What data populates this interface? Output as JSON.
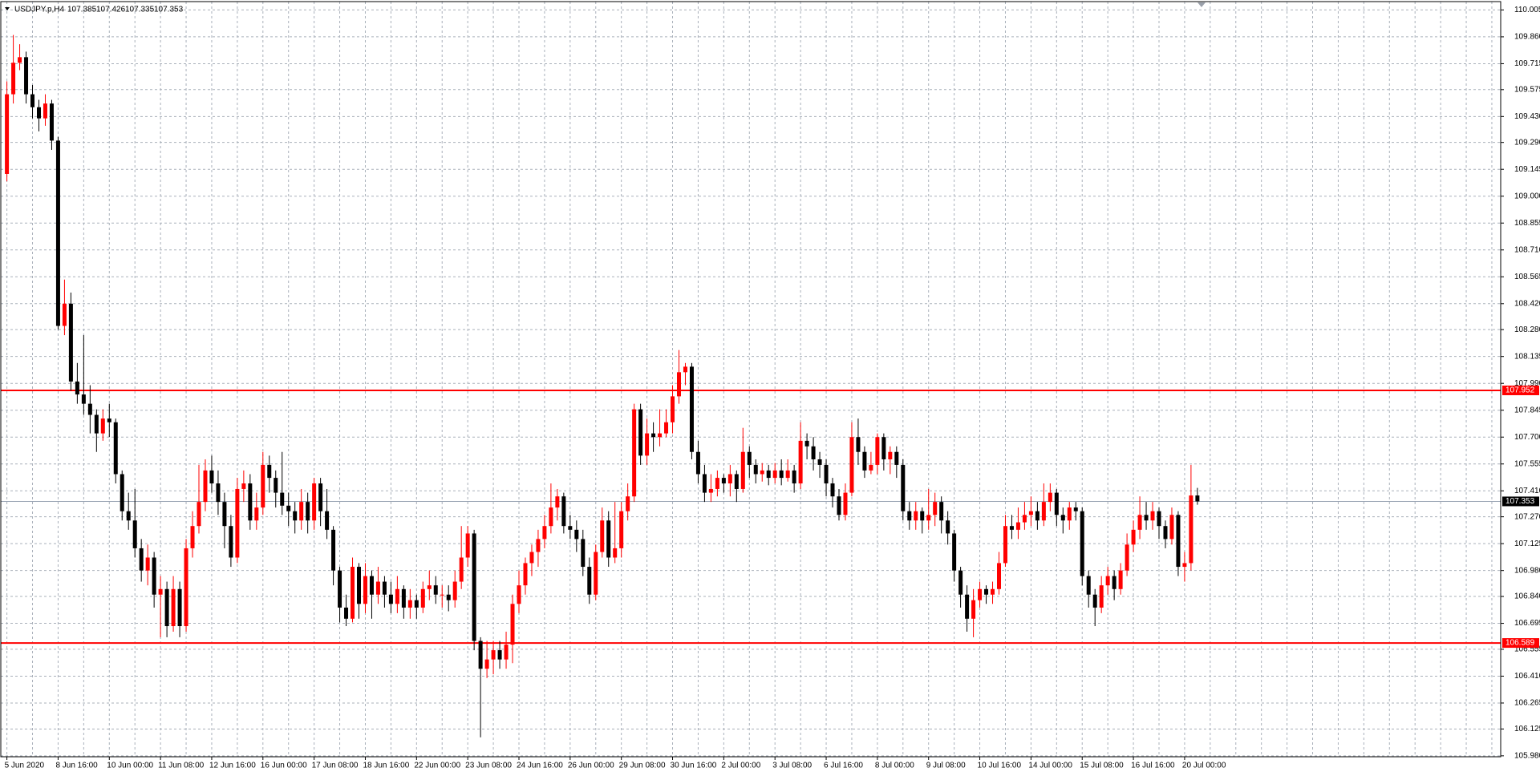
{
  "chart_data": {
    "type": "candlestick",
    "symbol": "USDJPY.p,H4",
    "bull_color": "#ff0000",
    "bear_color": "#000000",
    "grid": true,
    "ylim": [
      105.975,
      110.05
    ],
    "yticks": [
      {
        "value": 110.005,
        "label": "110.005"
      },
      {
        "value": 109.86,
        "label": "109.860"
      },
      {
        "value": 109.715,
        "label": "109.715"
      },
      {
        "value": 109.575,
        "label": "109.575"
      },
      {
        "value": 109.43,
        "label": "109.430"
      },
      {
        "value": 109.29,
        "label": "109.290"
      },
      {
        "value": 109.145,
        "label": "109.145"
      },
      {
        "value": 109,
        "label": "109.000"
      },
      {
        "value": 108.855,
        "label": "108.855"
      },
      {
        "value": 108.71,
        "label": "108.710"
      },
      {
        "value": 108.565,
        "label": "108.565"
      },
      {
        "value": 108.42,
        "label": "108.420"
      },
      {
        "value": 108.28,
        "label": "108.280"
      },
      {
        "value": 108.135,
        "label": "108.135"
      },
      {
        "value": 107.99,
        "label": "107.990"
      },
      {
        "value": 107.845,
        "label": "107.845"
      },
      {
        "value": 107.7,
        "label": "107.700"
      },
      {
        "value": 107.555,
        "label": "107.555"
      },
      {
        "value": 107.41,
        "label": "107.410"
      },
      {
        "value": 107.27,
        "label": "107.270"
      },
      {
        "value": 107.125,
        "label": "107.125"
      },
      {
        "value": 106.98,
        "label": "106.980"
      },
      {
        "value": 106.84,
        "label": "106.840"
      },
      {
        "value": 106.695,
        "label": "106.695"
      },
      {
        "value": 106.555,
        "label": "106.555"
      },
      {
        "value": 106.41,
        "label": "106.410"
      },
      {
        "value": 106.265,
        "label": "106.265"
      },
      {
        "value": 106.125,
        "label": "106.125"
      },
      {
        "value": 105.98,
        "label": "105.980"
      }
    ],
    "levels": [
      107.952,
      106.589
    ],
    "level_color": "#ff0000",
    "current_price": 107.353,
    "categories": [
      "5 Jun 2020",
      null,
      null,
      null,
      null,
      null,
      null,
      null,
      "8 Jun 16:00",
      null,
      null,
      null,
      null,
      null,
      null,
      null,
      "10 Jun 00:00",
      null,
      null,
      null,
      null,
      null,
      null,
      null,
      "11 Jun 08:00",
      null,
      null,
      null,
      null,
      null,
      null,
      null,
      "12 Jun 16:00",
      null,
      null,
      null,
      null,
      null,
      null,
      null,
      "16 Jun 00:00",
      null,
      null,
      null,
      null,
      null,
      null,
      null,
      "17 Jun 08:00",
      null,
      null,
      null,
      null,
      null,
      null,
      null,
      "18 Jun 16:00",
      null,
      null,
      null,
      null,
      null,
      null,
      null,
      "22 Jun 00:00",
      null,
      null,
      null,
      null,
      null,
      null,
      null,
      "23 Jun 08:00",
      null,
      null,
      null,
      null,
      null,
      null,
      null,
      "24 Jun 16:00",
      null,
      null,
      null,
      null,
      null,
      null,
      null,
      "26 Jun 00:00",
      null,
      null,
      null,
      null,
      null,
      null,
      null,
      "29 Jun 08:00",
      null,
      null,
      null,
      null,
      null,
      null,
      null,
      "30 Jun 16:00",
      null,
      null,
      null,
      null,
      null,
      null,
      null,
      "2 Jul 00:00",
      null,
      null,
      null,
      null,
      null,
      null,
      null,
      "3 Jul 08:00",
      null,
      null,
      null,
      null,
      null,
      null,
      null,
      "6 Jul 16:00",
      null,
      null,
      null,
      null,
      null,
      null,
      null,
      "8 Jul 00:00",
      null,
      null,
      null,
      null,
      null,
      null,
      null,
      "9 Jul 08:00",
      null,
      null,
      null,
      null,
      null,
      null,
      null,
      "10 Jul 16:00",
      null,
      null,
      null,
      null,
      null,
      null,
      null,
      "14 Jul 00:00",
      null,
      null,
      null,
      null,
      null,
      null,
      null,
      "15 Jul 08:00",
      null,
      null,
      null,
      null,
      null,
      null,
      null,
      "16 Jul 16:00",
      null,
      null,
      null,
      null,
      null,
      null,
      null,
      "20 Jul 00:00",
      null,
      null
    ],
    "open": [
      109.12,
      109.55,
      109.72,
      109.75,
      109.55,
      109.48,
      109.42,
      109.5,
      109.3,
      108.3,
      108.42,
      108.0,
      107.93,
      107.88,
      107.82,
      107.72,
      107.8,
      107.78,
      107.5,
      107.3,
      107.25,
      107.1,
      106.98,
      107.05,
      106.85,
      106.88,
      106.68,
      106.88,
      106.68,
      107.1,
      107.22,
      107.35,
      107.52,
      107.45,
      107.35,
      107.22,
      107.05,
      107.42,
      107.45,
      107.25,
      107.32,
      107.55,
      107.48,
      107.4,
      107.33,
      107.3,
      107.25,
      107.35,
      107.25,
      107.45,
      107.3,
      107.2,
      106.98,
      106.78,
      106.72,
      107.0,
      106.8,
      106.95,
      106.85,
      106.92,
      106.85,
      106.8,
      106.88,
      106.78,
      106.82,
      106.78,
      106.88,
      106.9,
      106.85,
      106.85,
      106.82,
      106.92,
      107.05,
      107.18,
      106.6,
      106.45,
      106.5,
      106.55,
      106.5,
      106.58,
      106.8,
      106.9,
      107.02,
      107.08,
      107.15,
      107.22,
      107.32,
      107.38,
      107.22,
      107.2,
      107.15,
      107.0,
      106.85,
      107.08,
      107.25,
      107.05,
      107.1,
      107.3,
      107.38,
      107.85,
      107.6,
      107.72,
      107.7,
      107.72,
      107.78,
      107.92,
      108.05,
      108.08,
      107.62,
      107.5,
      107.4,
      107.42,
      107.48,
      107.45,
      107.5,
      107.42,
      107.62,
      107.55,
      107.5,
      107.52,
      107.48,
      107.52,
      107.48,
      107.52,
      107.45,
      107.68,
      107.65,
      107.58,
      107.55,
      107.45,
      107.38,
      107.28,
      107.4,
      107.7,
      107.62,
      107.52,
      107.55,
      107.7,
      107.58,
      107.62,
      107.55,
      107.3,
      107.25,
      107.3,
      107.25,
      107.28,
      107.35,
      107.25,
      107.18,
      106.98,
      106.85,
      106.72,
      106.82,
      106.88,
      106.85,
      106.88,
      107.02,
      107.22,
      107.2,
      107.24,
      107.28,
      107.3,
      107.25,
      107.35,
      107.4,
      107.28,
      107.25,
      107.32,
      107.3,
      106.95,
      106.85,
      106.78,
      106.9,
      106.95,
      106.88,
      106.98,
      107.12,
      107.2,
      107.28,
      107.25,
      107.3,
      107.22,
      107.15,
      107.28,
      107.0,
      107.02,
      107.385
    ],
    "high": [
      109.62,
      109.87,
      109.82,
      109.78,
      109.6,
      109.52,
      109.55,
      109.52,
      109.32,
      108.55,
      108.48,
      108.1,
      108.25,
      107.98,
      107.85,
      107.85,
      107.88,
      107.8,
      107.52,
      107.4,
      107.42,
      107.15,
      107.12,
      107.08,
      106.95,
      106.92,
      106.95,
      106.92,
      107.15,
      107.3,
      107.55,
      107.58,
      107.6,
      107.52,
      107.4,
      107.28,
      107.48,
      107.52,
      107.5,
      107.4,
      107.62,
      107.6,
      107.52,
      107.62,
      107.4,
      107.35,
      107.42,
      107.4,
      107.48,
      107.48,
      107.42,
      107.22,
      107.0,
      106.85,
      107.05,
      107.02,
      107.02,
      106.98,
      107.0,
      106.95,
      106.92,
      106.95,
      106.9,
      106.88,
      106.85,
      106.92,
      106.98,
      106.95,
      106.9,
      106.9,
      106.98,
      107.22,
      107.22,
      107.2,
      106.62,
      106.6,
      106.6,
      106.6,
      106.65,
      106.85,
      106.98,
      107.05,
      107.12,
      107.2,
      107.28,
      107.45,
      107.42,
      107.4,
      107.28,
      107.25,
      107.2,
      107.05,
      107.12,
      107.32,
      107.3,
      107.35,
      107.35,
      107.45,
      107.88,
      107.88,
      107.8,
      107.78,
      107.85,
      107.85,
      107.98,
      108.17,
      108.1,
      108.1,
      107.68,
      107.55,
      107.5,
      107.52,
      107.5,
      107.55,
      107.52,
      107.75,
      107.65,
      107.58,
      107.56,
      107.55,
      107.56,
      107.58,
      107.58,
      107.55,
      107.78,
      107.72,
      107.7,
      107.62,
      107.58,
      107.48,
      107.42,
      107.45,
      107.78,
      107.8,
      107.65,
      107.62,
      107.72,
      107.72,
      107.65,
      107.65,
      107.58,
      107.35,
      107.35,
      107.32,
      107.42,
      107.4,
      107.38,
      107.3,
      107.2,
      107.0,
      106.9,
      106.88,
      106.92,
      106.9,
      106.92,
      107.08,
      107.28,
      107.28,
      107.32,
      107.35,
      107.38,
      107.35,
      107.45,
      107.45,
      107.42,
      107.32,
      107.35,
      107.35,
      107.32,
      106.98,
      106.88,
      106.95,
      107.0,
      106.98,
      107.02,
      107.18,
      107.25,
      107.38,
      107.35,
      107.35,
      107.32,
      107.25,
      107.32,
      107.3,
      107.08,
      107.55,
      107.426
    ],
    "low": [
      109.08,
      109.5,
      109.68,
      109.5,
      109.42,
      109.35,
      109.38,
      109.25,
      108.28,
      108.25,
      107.95,
      107.88,
      107.82,
      107.72,
      107.62,
      107.68,
      107.7,
      107.45,
      107.25,
      107.2,
      107.05,
      106.92,
      106.9,
      106.78,
      106.62,
      106.62,
      106.65,
      106.62,
      106.65,
      107.05,
      107.18,
      107.3,
      107.4,
      107.28,
      107.1,
      107.0,
      107.02,
      107.35,
      107.2,
      107.2,
      107.28,
      107.4,
      107.32,
      107.28,
      107.22,
      107.18,
      107.2,
      107.18,
      107.2,
      107.22,
      107.15,
      106.9,
      106.7,
      106.68,
      106.7,
      106.72,
      106.75,
      106.72,
      106.8,
      106.78,
      106.75,
      106.75,
      106.72,
      106.72,
      106.72,
      106.75,
      106.82,
      106.8,
      106.78,
      106.76,
      106.78,
      106.88,
      107.0,
      106.55,
      106.08,
      106.4,
      106.42,
      106.45,
      106.45,
      106.48,
      106.75,
      106.85,
      106.95,
      107.0,
      107.1,
      107.18,
      107.25,
      107.18,
      107.15,
      107.08,
      106.95,
      106.8,
      106.82,
      107.05,
      107.0,
      107.02,
      107.05,
      107.25,
      107.35,
      107.55,
      107.55,
      107.62,
      107.65,
      107.7,
      107.72,
      107.88,
      107.98,
      107.58,
      107.45,
      107.35,
      107.35,
      107.38,
      107.4,
      107.38,
      107.35,
      107.4,
      107.48,
      107.45,
      107.46,
      107.44,
      107.45,
      107.44,
      107.46,
      107.4,
      107.42,
      107.58,
      107.52,
      107.48,
      107.38,
      107.32,
      107.25,
      107.25,
      107.38,
      107.55,
      107.48,
      107.5,
      107.5,
      107.52,
      107.5,
      107.48,
      107.25,
      107.2,
      107.2,
      107.18,
      107.2,
      107.22,
      107.18,
      107.12,
      106.92,
      106.78,
      106.65,
      106.62,
      106.78,
      106.8,
      106.8,
      106.85,
      107.0,
      107.15,
      107.15,
      107.2,
      107.22,
      107.2,
      107.22,
      107.3,
      107.22,
      107.18,
      107.2,
      107.25,
      106.9,
      106.78,
      106.68,
      106.75,
      106.85,
      106.82,
      106.85,
      106.95,
      107.08,
      107.15,
      107.2,
      107.2,
      107.15,
      107.1,
      107.12,
      106.95,
      106.92,
      106.98,
      107.335
    ],
    "close": [
      109.55,
      109.72,
      109.75,
      109.55,
      109.48,
      109.42,
      109.5,
      109.3,
      108.3,
      108.42,
      108.0,
      107.93,
      107.88,
      107.82,
      107.72,
      107.8,
      107.78,
      107.5,
      107.3,
      107.25,
      107.1,
      106.98,
      107.05,
      106.85,
      106.88,
      106.68,
      106.88,
      106.68,
      107.1,
      107.22,
      107.35,
      107.52,
      107.45,
      107.35,
      107.22,
      107.05,
      107.42,
      107.45,
      107.25,
      107.32,
      107.55,
      107.48,
      107.4,
      107.33,
      107.3,
      107.25,
      107.35,
      107.25,
      107.45,
      107.3,
      107.2,
      106.98,
      106.78,
      106.72,
      107.0,
      106.8,
      106.95,
      106.85,
      106.92,
      106.85,
      106.8,
      106.88,
      106.78,
      106.82,
      106.78,
      106.88,
      106.9,
      106.85,
      106.85,
      106.82,
      106.92,
      107.05,
      107.18,
      106.6,
      106.45,
      106.5,
      106.55,
      106.5,
      106.58,
      106.8,
      106.9,
      107.02,
      107.08,
      107.15,
      107.22,
      107.32,
      107.38,
      107.22,
      107.2,
      107.15,
      107.0,
      106.85,
      107.08,
      107.25,
      107.05,
      107.1,
      107.3,
      107.38,
      107.85,
      107.6,
      107.72,
      107.7,
      107.72,
      107.78,
      107.92,
      108.05,
      108.08,
      107.62,
      107.5,
      107.4,
      107.42,
      107.48,
      107.45,
      107.5,
      107.42,
      107.62,
      107.55,
      107.5,
      107.52,
      107.48,
      107.52,
      107.48,
      107.52,
      107.45,
      107.68,
      107.65,
      107.58,
      107.55,
      107.45,
      107.38,
      107.28,
      107.4,
      107.7,
      107.62,
      107.52,
      107.55,
      107.7,
      107.58,
      107.62,
      107.55,
      107.3,
      107.25,
      107.3,
      107.25,
      107.28,
      107.35,
      107.25,
      107.18,
      106.98,
      106.85,
      106.72,
      106.82,
      106.88,
      106.85,
      106.88,
      107.02,
      107.22,
      107.2,
      107.24,
      107.28,
      107.3,
      107.25,
      107.35,
      107.4,
      107.28,
      107.25,
      107.32,
      107.3,
      106.95,
      106.85,
      106.78,
      106.9,
      106.95,
      106.88,
      106.98,
      107.12,
      107.2,
      107.28,
      107.25,
      107.3,
      107.22,
      107.15,
      107.28,
      107.0,
      107.02,
      107.385,
      107.353
    ]
  }
}
